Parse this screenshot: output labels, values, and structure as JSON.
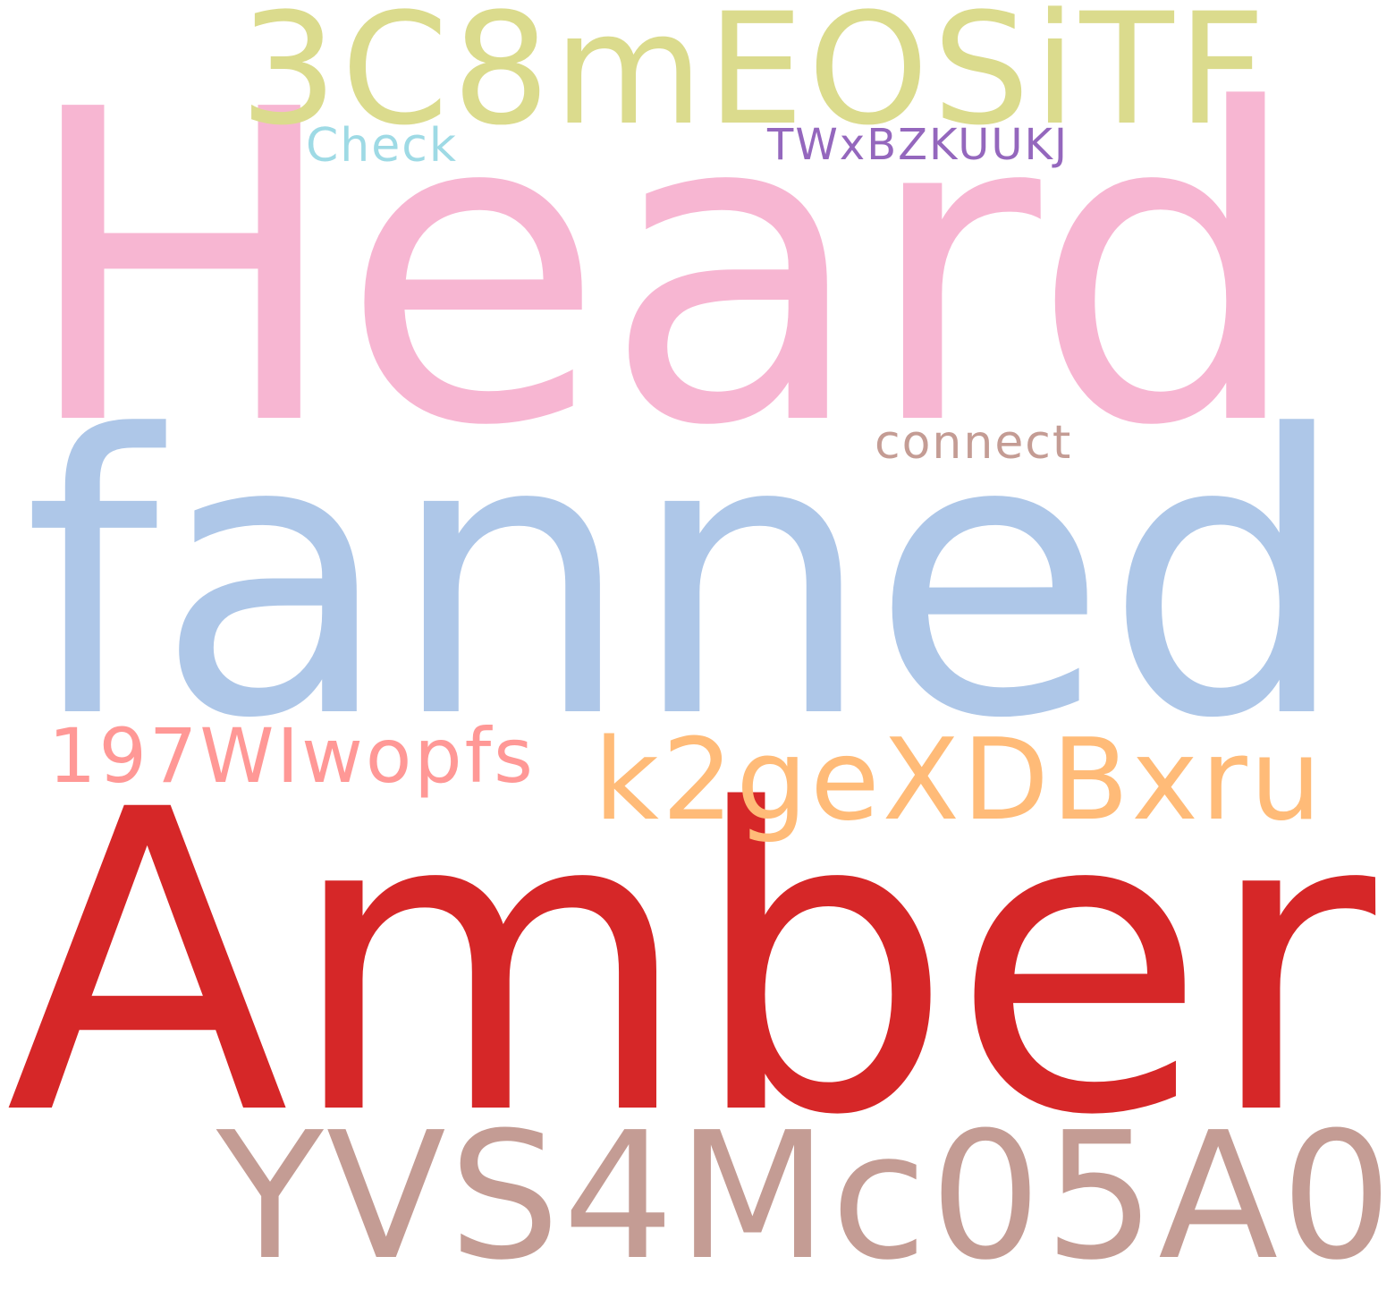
{
  "words": [
    {
      "id": "3c8",
      "text": "3C8mEOSiTF",
      "color": "#dbdb8d"
    },
    {
      "id": "check",
      "text": "Check",
      "color": "#9edae5"
    },
    {
      "id": "twx",
      "text": "TWxBZKUUKJ",
      "color": "#9467bd"
    },
    {
      "id": "heard",
      "text": "Heard",
      "color": "#f7b6d2"
    },
    {
      "id": "connect",
      "text": "connect",
      "color": "#c49c94"
    },
    {
      "id": "fanned",
      "text": "fanned",
      "color": "#aec7e8"
    },
    {
      "id": "197",
      "text": "197WIwopfs",
      "color": "#ff9896"
    },
    {
      "id": "k2g",
      "text": "k2geXDBxru",
      "color": "#ffbb78"
    },
    {
      "id": "amber",
      "text": "Amber",
      "color": "#d62728"
    },
    {
      "id": "yvs",
      "text": "YVS4Mc05A0",
      "color": "#c49c94"
    }
  ]
}
